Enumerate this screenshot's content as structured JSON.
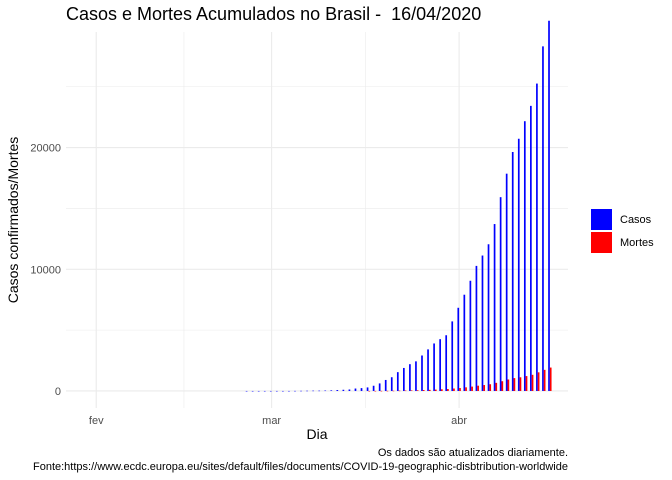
{
  "title": "Casos e Mortes Acumulados no Brasil -  16/04/2020",
  "caption_line1": "Os dados são atualizados diariamente.",
  "caption_line2": "Fonte:https://www.ecdc.europa.eu/sites/default/files/documents/COVID-19-geographic-disbtribution-worldwide",
  "colors": {
    "casos": "#0000ff",
    "mortes": "#ff0000",
    "grid": "#ebebeb"
  },
  "chart_data": {
    "type": "bar",
    "xlabel": "Dia",
    "ylabel": "Casos confirmados/Mortes",
    "xticks": [
      {
        "label": "fev",
        "date": "2020-02-01"
      },
      {
        "label": "mar",
        "date": "2020-03-01"
      },
      {
        "label": "abr",
        "date": "2020-04-01"
      }
    ],
    "yticks": [
      0,
      10000,
      20000
    ],
    "xlim": [
      "2020-01-27",
      "2020-04-19"
    ],
    "ylim": [
      -1400,
      29500
    ],
    "grid": true,
    "legend_position": "right",
    "dates": [
      "2020-02-26",
      "2020-02-27",
      "2020-02-28",
      "2020-02-29",
      "2020-03-01",
      "2020-03-02",
      "2020-03-03",
      "2020-03-04",
      "2020-03-05",
      "2020-03-06",
      "2020-03-07",
      "2020-03-08",
      "2020-03-09",
      "2020-03-10",
      "2020-03-11",
      "2020-03-12",
      "2020-03-13",
      "2020-03-14",
      "2020-03-15",
      "2020-03-16",
      "2020-03-17",
      "2020-03-18",
      "2020-03-19",
      "2020-03-20",
      "2020-03-21",
      "2020-03-22",
      "2020-03-23",
      "2020-03-24",
      "2020-03-25",
      "2020-03-26",
      "2020-03-27",
      "2020-03-28",
      "2020-03-29",
      "2020-03-30",
      "2020-03-31",
      "2020-04-01",
      "2020-04-02",
      "2020-04-03",
      "2020-04-04",
      "2020-04-05",
      "2020-04-06",
      "2020-04-07",
      "2020-04-08",
      "2020-04-09",
      "2020-04-10",
      "2020-04-11",
      "2020-04-12",
      "2020-04-13",
      "2020-04-14",
      "2020-04-15",
      "2020-04-16"
    ],
    "series": [
      {
        "name": "Casos",
        "values": [
          1,
          1,
          1,
          2,
          2,
          2,
          2,
          3,
          7,
          13,
          19,
          25,
          25,
          34,
          52,
          77,
          98,
          121,
          200,
          234,
          291,
          428,
          621,
          904,
          1128,
          1546,
          1891,
          2201,
          2433,
          2915,
          3417,
          3904,
          4256,
          4579,
          5717,
          6836,
          7910,
          9056,
          10278,
          11130,
          12056,
          13717,
          15927,
          17857,
          19638,
          20727,
          22169,
          23430,
          25262,
          28320,
          30425
        ]
      },
      {
        "name": "Mortes",
        "values": [
          0,
          0,
          0,
          0,
          0,
          0,
          0,
          0,
          0,
          0,
          0,
          0,
          0,
          0,
          0,
          0,
          0,
          0,
          0,
          0,
          1,
          3,
          6,
          11,
          18,
          25,
          34,
          46,
          57,
          77,
          92,
          111,
          136,
          159,
          201,
          241,
          299,
          359,
          432,
          486,
          553,
          667,
          800,
          941,
          1056,
          1124,
          1223,
          1328,
          1532,
          1736,
          1924
        ]
      }
    ]
  },
  "legend": {
    "items": [
      {
        "label": "Casos"
      },
      {
        "label": "Mortes"
      }
    ]
  }
}
